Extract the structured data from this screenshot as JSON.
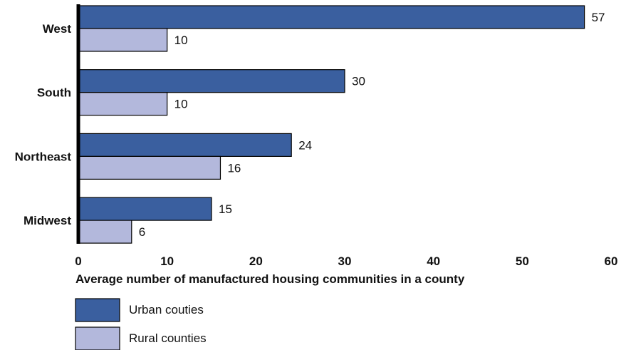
{
  "chart_data": {
    "type": "bar",
    "orientation": "horizontal",
    "categories": [
      "West",
      "South",
      "Northeast",
      "Midwest"
    ],
    "series": [
      {
        "name": "Urban couties",
        "values": [
          57,
          30,
          24,
          15
        ],
        "color": "#3a5f9f"
      },
      {
        "name": "Rural counties",
        "values": [
          10,
          10,
          16,
          6
        ],
        "color": "#b3b8dc"
      }
    ],
    "xlabel": "Average number of manufactured housing communities in a county",
    "xlim": [
      0,
      60
    ],
    "xticks": [
      "0",
      "10",
      "20",
      "30",
      "40",
      "50",
      "60"
    ],
    "grid": false,
    "legend_position": "bottom-left",
    "data_labels": true
  }
}
